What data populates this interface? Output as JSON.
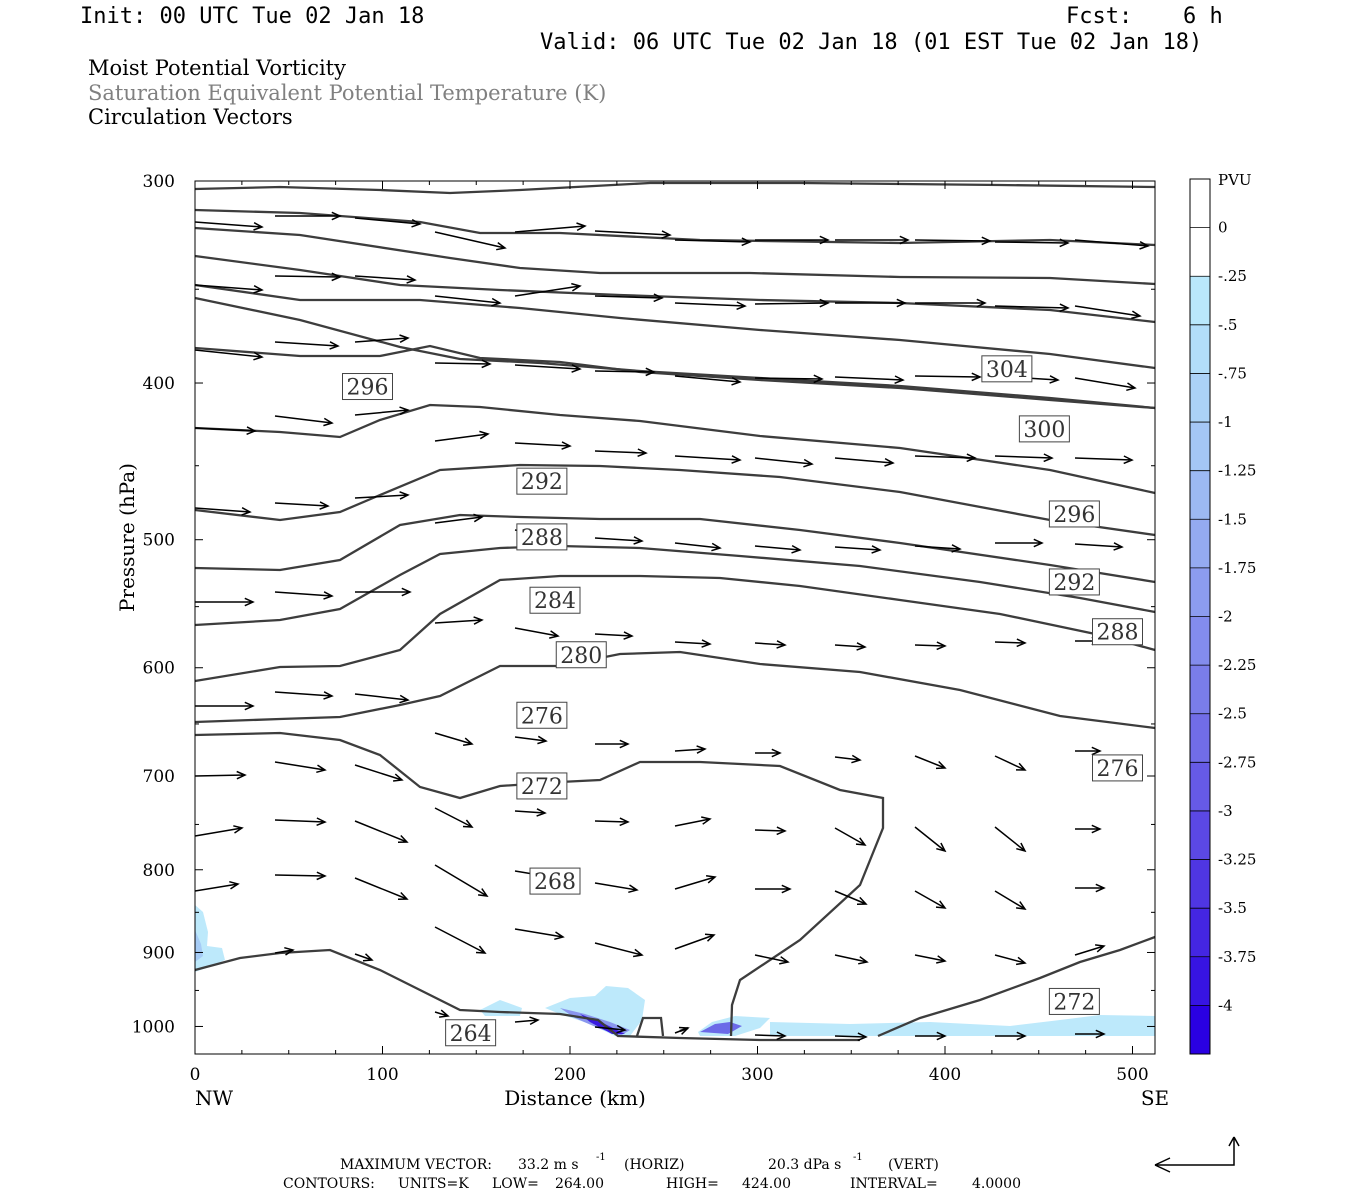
{
  "header": {
    "init": "Init: 00 UTC Tue 02 Jan 18",
    "fcst_label": "Fcst:",
    "fcst_value": "6 h",
    "valid": "Valid: 06 UTC Tue 02 Jan 18 (01 EST Tue 02 Jan 18)"
  },
  "fields": [
    "Moist Potential Vorticity",
    "Saturation Equivalent Potential Temperature (K)",
    "Circulation Vectors"
  ],
  "chart_data": {
    "type": "cross-section",
    "xlabel": "Distance (km)",
    "ylabel": "Pressure (hPa)",
    "xlim": [
      0,
      512
    ],
    "ylim": [
      300,
      1040
    ],
    "y_scale": "log (pressure)",
    "xticks": [
      0,
      100,
      200,
      300,
      400,
      500
    ],
    "yticks": [
      300,
      400,
      500,
      600,
      700,
      800,
      900,
      1000
    ],
    "x_end_labels": {
      "left": "NW",
      "right": "SE"
    },
    "colorbar": {
      "unit": "PVU",
      "levels": [
        "0",
        "-.25",
        "-.5",
        "-.75",
        "-1",
        "-1.25",
        "-1.5",
        "-1.75",
        "-2",
        "-2.25",
        "-2.5",
        "-2.75",
        "-3",
        "-3.25",
        "-3.5",
        "-3.75",
        "-4"
      ],
      "colors": [
        "#ffffff",
        "#ffffff",
        "#b9e8fb",
        "#b2def9",
        "#abd2f7",
        "#a4c6f5",
        "#9cb9f3",
        "#94aaf1",
        "#8c9cef",
        "#838ced",
        "#7a7dea",
        "#716de8",
        "#665ae6",
        "#5b48e4",
        "#4f36e2",
        "#4426e2",
        "#3714e2",
        "#2a00e2"
      ]
    },
    "contours": {
      "units": "K",
      "low": 264.0,
      "high": 424.0,
      "interval": 4.0,
      "labels": [
        {
          "value": "304",
          "x": 433,
          "p": 392
        },
        {
          "value": "300",
          "x": 453,
          "p": 427
        },
        {
          "value": "296",
          "x": 92,
          "p": 402
        },
        {
          "value": "296",
          "x": 469,
          "p": 482
        },
        {
          "value": "292",
          "x": 185,
          "p": 460
        },
        {
          "value": "292",
          "x": 469,
          "p": 531
        },
        {
          "value": "288",
          "x": 185,
          "p": 498
        },
        {
          "value": "288",
          "x": 492,
          "p": 570
        },
        {
          "value": "284",
          "x": 192,
          "p": 545
        },
        {
          "value": "280",
          "x": 206,
          "p": 589
        },
        {
          "value": "276",
          "x": 185,
          "p": 642
        },
        {
          "value": "276",
          "x": 492,
          "p": 692
        },
        {
          "value": "272",
          "x": 185,
          "p": 710
        },
        {
          "value": "272",
          "x": 469,
          "p": 965
        },
        {
          "value": "268",
          "x": 192,
          "p": 813
        },
        {
          "value": "264",
          "x": 147,
          "p": 1009
        }
      ]
    },
    "max_vector": {
      "horiz": "33.2 m s",
      "horiz_unit": "(HORIZ)",
      "vert": "20.3 dPa s",
      "vert_unit": "(VERT)"
    }
  },
  "footer": {
    "max_vector_label": "MAXIMUM VECTOR:",
    "contours_label": "CONTOURS:",
    "units": "UNITS=K",
    "low": "LOW=",
    "low_value": "264.00",
    "high": "HIGH=",
    "high_value": "424.00",
    "interval": "INTERVAL=",
    "interval_value": "4.0000"
  }
}
